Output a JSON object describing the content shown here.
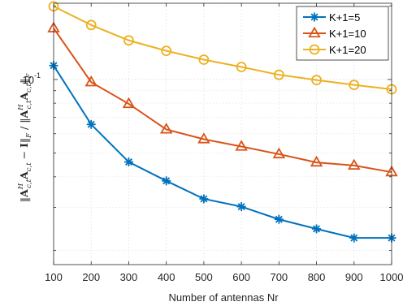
{
  "chart_data": {
    "type": "line",
    "title": "",
    "xlabel": "Number of antennas Nr",
    "ylabel": "‖A_{c,t}^H A_{c,t} − I‖_F / ‖A_{c,t}^H A_{c,t}‖_F",
    "x": [
      100,
      200,
      300,
      400,
      500,
      600,
      700,
      800,
      900,
      1000
    ],
    "x_tick_labels": [
      "100",
      "200",
      "300",
      "400",
      "500",
      "600",
      "700",
      "800",
      "900",
      "1000"
    ],
    "xlim": [
      100,
      1000
    ],
    "y_scale": "log",
    "ylim": [
      0.0175,
      0.205
    ],
    "y_tick_label": "10",
    "y_tick_exponent": "-1",
    "grid": true,
    "legend_position": "top-right",
    "series": [
      {
        "name": "K+1=5",
        "color": "#0072BD",
        "marker": "asterisk",
        "values": [
          0.114,
          0.0655,
          0.046,
          0.0385,
          0.0325,
          0.0302,
          0.0268,
          0.0245,
          0.0225,
          0.0225
        ]
      },
      {
        "name": "K+1=10",
        "color": "#D95319",
        "marker": "triangle",
        "values": [
          0.162,
          0.0975,
          0.0795,
          0.0625,
          0.057,
          0.0532,
          0.0495,
          0.0458,
          0.0445,
          0.0418
        ]
      },
      {
        "name": "K+1=20",
        "color": "#EDB120",
        "marker": "circle",
        "values": [
          0.199,
          0.167,
          0.1445,
          0.131,
          0.1205,
          0.1125,
          0.1045,
          0.0995,
          0.095,
          0.0912
        ]
      }
    ]
  }
}
